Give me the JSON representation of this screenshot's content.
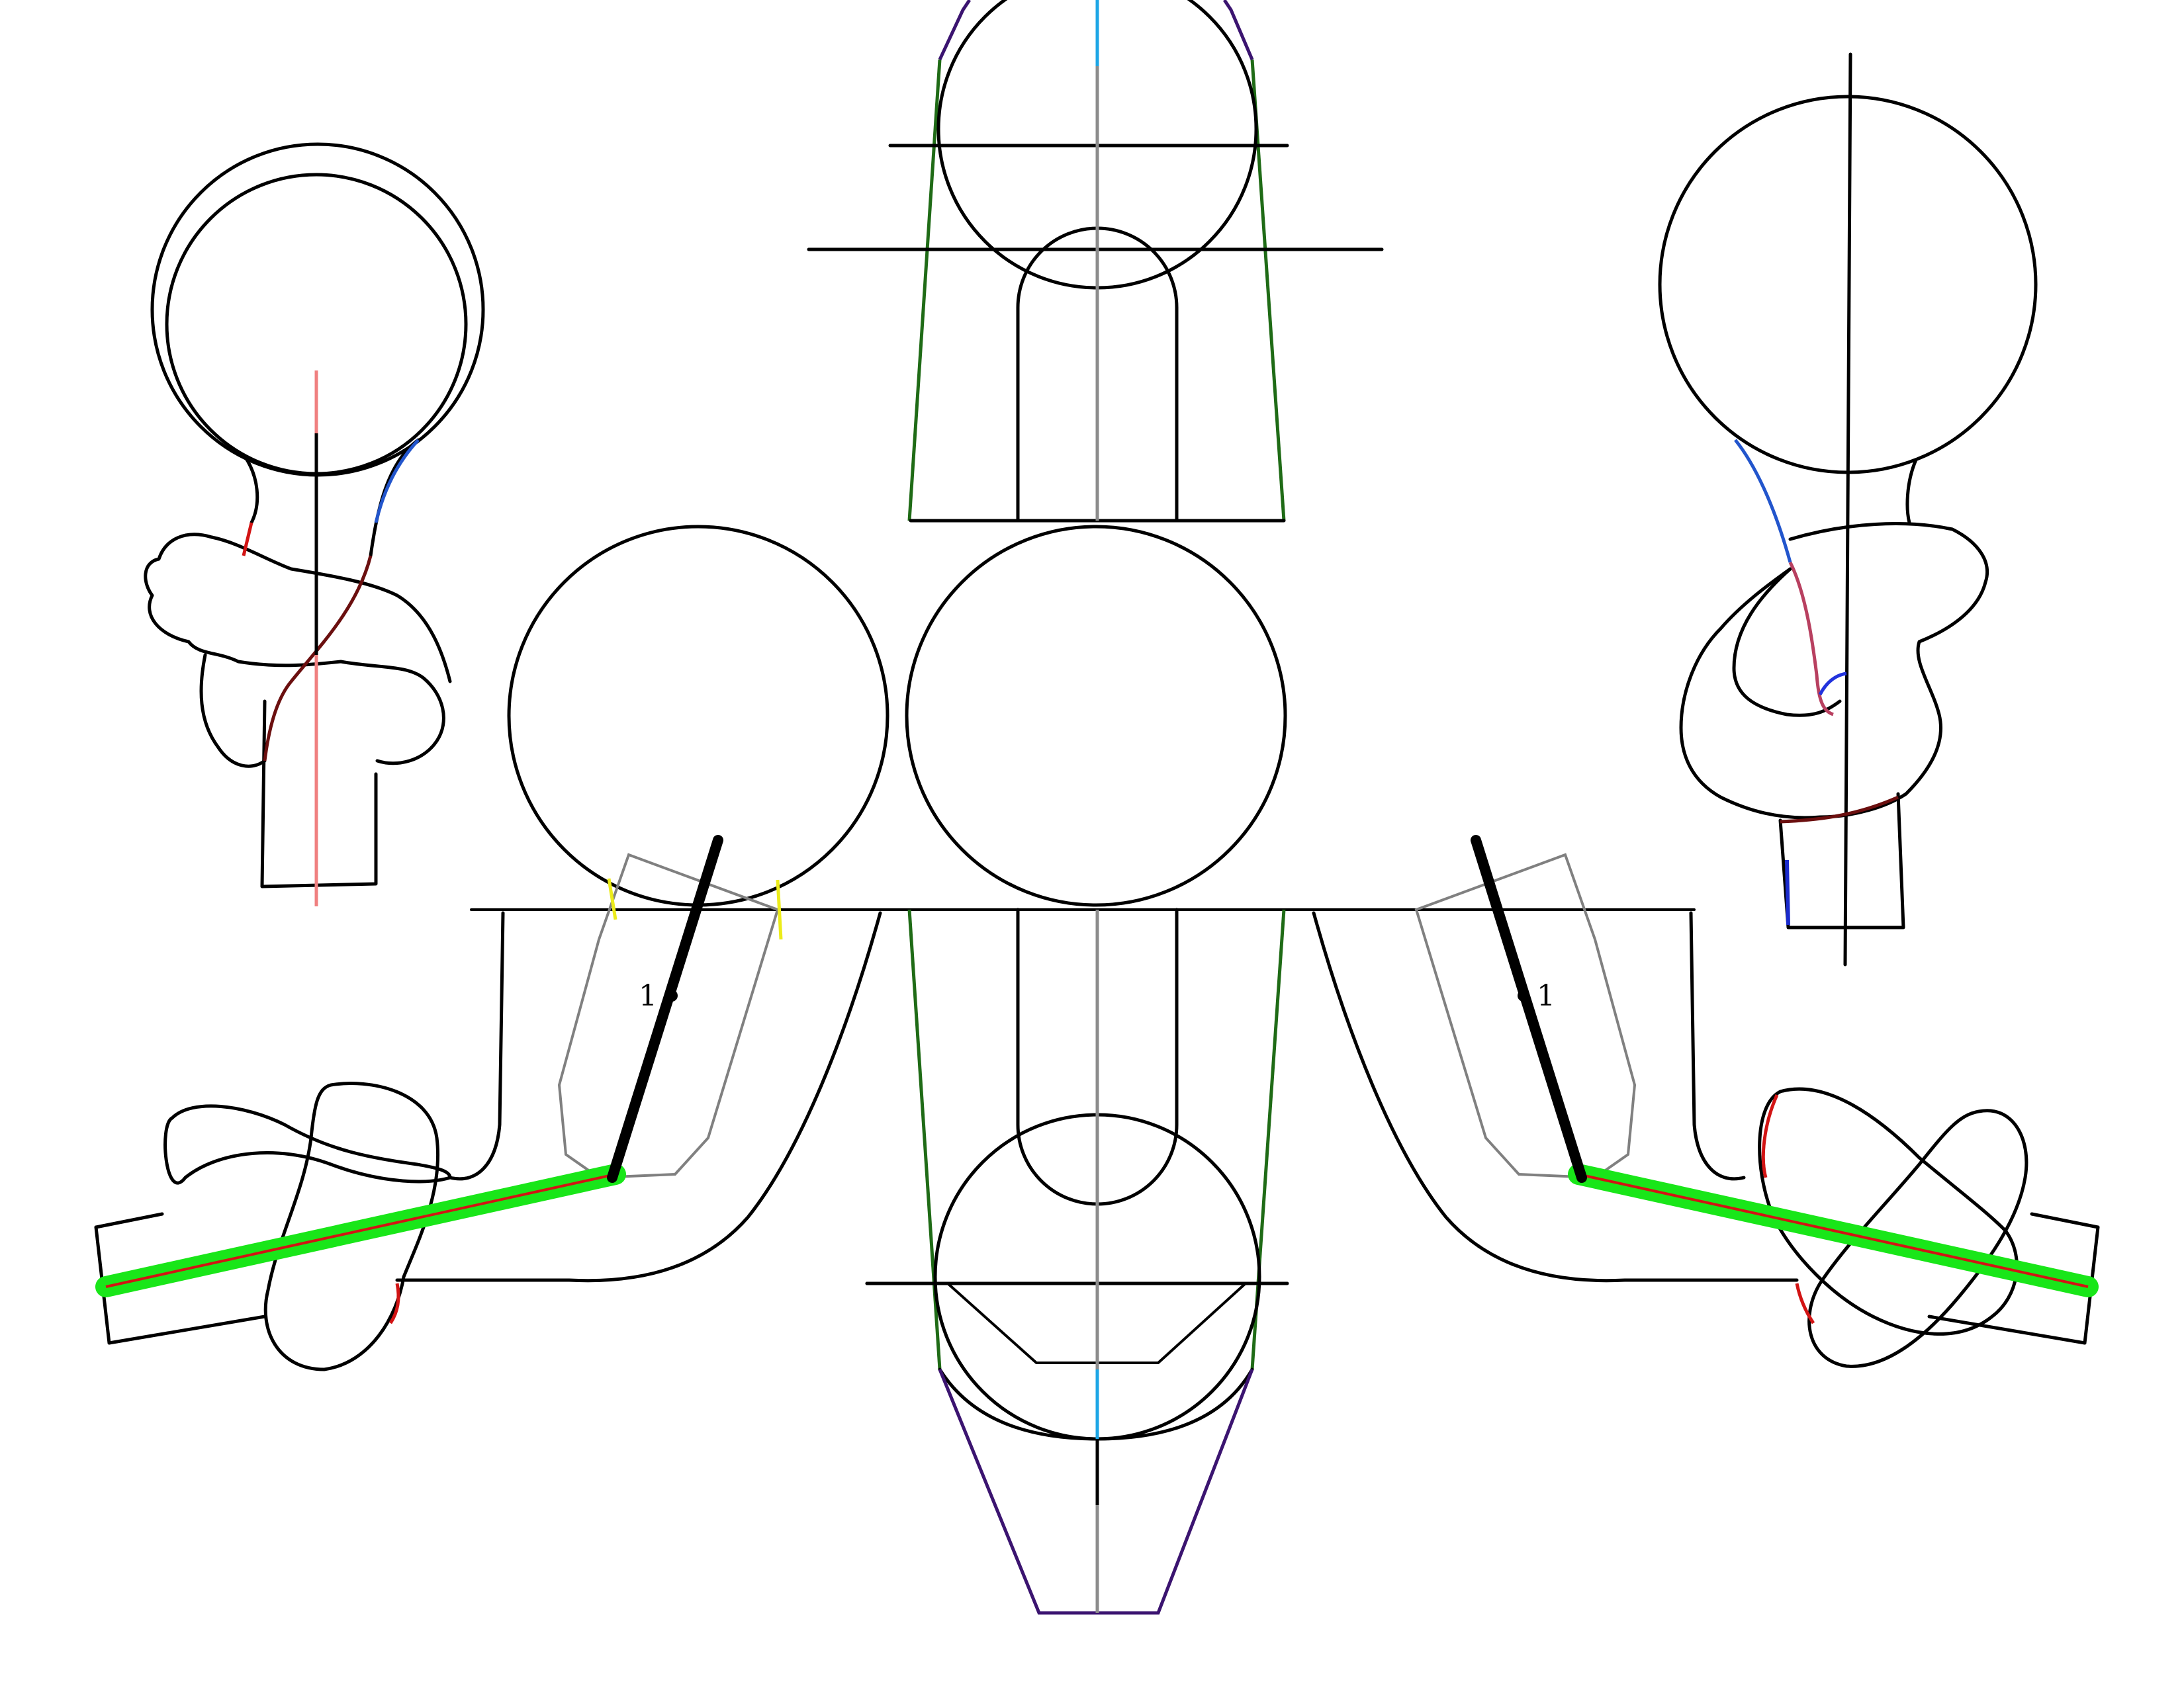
{
  "figure": {
    "labels": {
      "left_marker": "1",
      "right_marker": "1"
    },
    "colors": {
      "outline": "#000000",
      "centerline_gray": "#8c8c8c",
      "centerline_blue": "#1da6e6",
      "guide_green": "#1f6b16",
      "guide_purple": "#3b1470",
      "highlight_green": "#19e619",
      "axis_red": "#d21414",
      "axis_pink": "#f08080",
      "edge_blue": "#2255cc",
      "edge_darkred": "#6b0f0f",
      "tick_yellow": "#ecec1a",
      "ghost_gray": "#808080"
    }
  }
}
